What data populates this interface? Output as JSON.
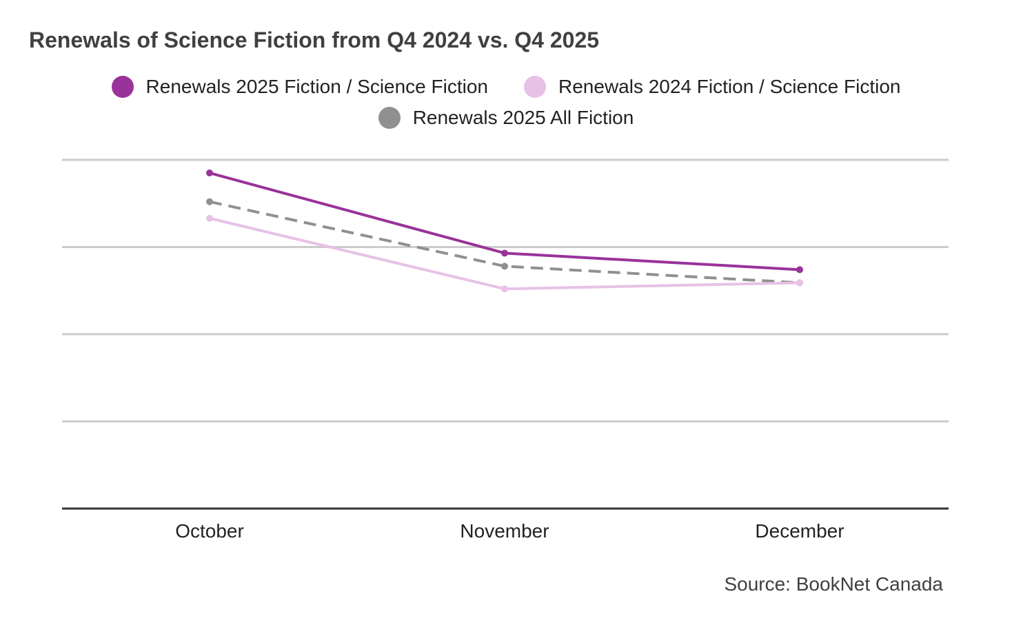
{
  "chart_data": {
    "type": "line",
    "title": "Renewals of Science Fiction from Q4 2024 vs. Q4 2025",
    "categories": [
      "October",
      "November",
      "December"
    ],
    "ylim": [
      0,
      4
    ],
    "grid": true,
    "legend_position": "top-center",
    "series": [
      {
        "name": "Renewals 2025 Fiction / Science Fiction",
        "values": [
          3.85,
          2.93,
          2.74
        ],
        "color": "#993399",
        "dash": "solid"
      },
      {
        "name": "Renewals 2024 Fiction / Science Fiction",
        "values": [
          3.33,
          2.52,
          2.59
        ],
        "color": "#e8c1e6",
        "dash": "solid"
      },
      {
        "name": "Renewals 2025 All Fiction",
        "values": [
          3.52,
          2.78,
          2.59
        ],
        "color": "#909090",
        "dash": "dashed"
      }
    ]
  },
  "source": "Source: BookNet Canada"
}
